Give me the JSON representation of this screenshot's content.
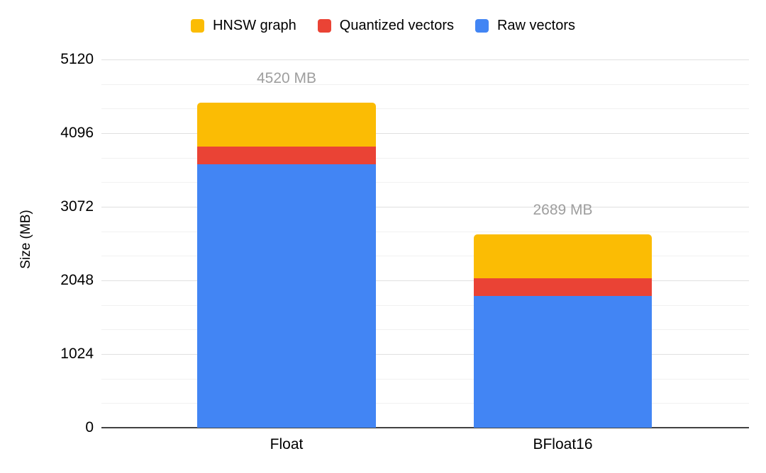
{
  "chart_data": {
    "type": "bar",
    "stacked": true,
    "categories": [
      "Float",
      "BFloat16"
    ],
    "series": [
      {
        "name": "HNSW graph",
        "color": "#FBBC04",
        "values": [
          614,
          614
        ]
      },
      {
        "name": "Quantized vectors",
        "color": "#EA4335",
        "values": [
          244,
          244
        ]
      },
      {
        "name": "Raw vectors",
        "color": "#4285F4",
        "values": [
          3662,
          1831
        ]
      }
    ],
    "totals": [
      4520,
      2689
    ],
    "total_labels": [
      "4520 MB",
      "2689 MB"
    ],
    "xlabel": "",
    "ylabel": "Size (MB)",
    "ylim": [
      0,
      5120
    ],
    "yticks": [
      0,
      1024,
      2048,
      3072,
      4096,
      5120
    ],
    "minor_grid_divisions": 3,
    "grid": true,
    "legend_position": "top"
  },
  "colors": {
    "major_gridline": "#e0e0e0",
    "minor_gridline": "#f1f1f1",
    "axis_line": "#424242",
    "total_label_text": "#9e9e9e",
    "tick_label_text": "#000000"
  }
}
